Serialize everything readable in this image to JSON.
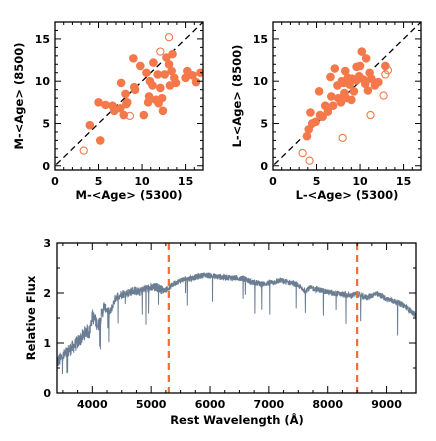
{
  "chart_data": [
    {
      "type": "scatter",
      "xlabel": "M-<Age> (5300)",
      "ylabel": "M-<Age> (8500)",
      "xlim": [
        0,
        17
      ],
      "ylim": [
        -0.5,
        17
      ],
      "xticks": [
        "0",
        "5",
        "10",
        "15"
      ],
      "yticks": [
        "0",
        "5",
        "10",
        "15"
      ],
      "reference_line": "one-to-one dashed",
      "filled": [
        [
          4,
          4.8
        ],
        [
          5.2,
          3
        ],
        [
          5,
          7.5
        ],
        [
          5.8,
          7.2
        ],
        [
          6.8,
          6.5
        ],
        [
          6.6,
          7.1
        ],
        [
          7.6,
          9.8
        ],
        [
          7.5,
          6.8
        ],
        [
          7.9,
          6
        ],
        [
          8.1,
          8.5
        ],
        [
          8.3,
          7.5
        ],
        [
          9,
          12.7
        ],
        [
          9.2,
          9
        ],
        [
          9.1,
          9.3
        ],
        [
          9.8,
          11.8
        ],
        [
          10.5,
          11
        ],
        [
          10.2,
          6
        ],
        [
          10.7,
          7.5
        ],
        [
          10.8,
          8.2
        ],
        [
          10.9,
          10
        ],
        [
          11.3,
          12.2
        ],
        [
          11.2,
          9.5
        ],
        [
          11.6,
          7.8
        ],
        [
          11.8,
          10.8
        ],
        [
          12.1,
          9.2
        ],
        [
          12.3,
          8
        ],
        [
          12.4,
          6.5
        ],
        [
          12.8,
          12.8
        ],
        [
          12.6,
          10.8
        ],
        [
          13.1,
          12
        ],
        [
          13.2,
          9.5
        ],
        [
          13.4,
          11.2
        ],
        [
          13.7,
          10.4
        ],
        [
          13.9,
          9.8
        ],
        [
          15,
          10.4
        ],
        [
          15.2,
          11.2
        ],
        [
          15.8,
          10.7
        ],
        [
          16.2,
          9.9
        ],
        [
          16.7,
          11
        ],
        [
          8.2,
          7.3
        ],
        [
          11.9,
          7.4
        ],
        [
          13.5,
          13.2
        ]
      ],
      "open": [
        [
          3.3,
          1.8
        ],
        [
          12.1,
          13.5
        ],
        [
          13.1,
          15.2
        ],
        [
          8.6,
          5.9
        ]
      ]
    },
    {
      "type": "scatter",
      "xlabel": "L-<Age> (5300)",
      "ylabel": "L-<Age> (8500)",
      "xlim": [
        0,
        17
      ],
      "ylim": [
        -0.5,
        17
      ],
      "xticks": [
        "0",
        "5",
        "10",
        "15"
      ],
      "yticks": [
        "0",
        "5",
        "10",
        "15"
      ],
      "reference_line": "one-to-one dashed",
      "filled": [
        [
          3.9,
          3.5
        ],
        [
          4.1,
          4.3
        ],
        [
          4.3,
          6.3
        ],
        [
          4.5,
          5
        ],
        [
          4.9,
          5.2
        ],
        [
          5.3,
          8.8
        ],
        [
          5.4,
          6
        ],
        [
          5.7,
          5.8
        ],
        [
          6,
          7.1
        ],
        [
          6.3,
          6.4
        ],
        [
          6.6,
          10.5
        ],
        [
          6.7,
          8.2
        ],
        [
          6.9,
          7.1
        ],
        [
          7.1,
          11.5
        ],
        [
          7.4,
          9.5
        ],
        [
          7.5,
          8
        ],
        [
          7.8,
          7.5
        ],
        [
          7.9,
          10
        ],
        [
          8.1,
          9.8
        ],
        [
          8.2,
          8.6
        ],
        [
          8.3,
          11.2
        ],
        [
          8.6,
          10.4
        ],
        [
          8.8,
          9.6
        ],
        [
          9,
          7.8
        ],
        [
          9.1,
          10.3
        ],
        [
          9.3,
          8.8
        ],
        [
          9.6,
          10.1
        ],
        [
          9.9,
          10.6
        ],
        [
          10,
          11.8
        ],
        [
          10.2,
          13.5
        ],
        [
          10.4,
          10.2
        ],
        [
          10.6,
          9.7
        ],
        [
          10.7,
          12.7
        ],
        [
          10.9,
          8.9
        ],
        [
          11.1,
          11
        ],
        [
          11.3,
          10.3
        ],
        [
          11.7,
          9.5
        ],
        [
          12.1,
          9.9
        ],
        [
          12.9,
          11.8
        ],
        [
          9.6,
          11.7
        ],
        [
          8.4,
          8
        ]
      ],
      "open": [
        [
          3.4,
          1.5
        ],
        [
          4.2,
          0.6
        ],
        [
          8,
          3.3
        ],
        [
          11.2,
          6
        ],
        [
          12.9,
          10.8
        ],
        [
          12.7,
          8.3
        ],
        [
          13.2,
          11.3
        ]
      ]
    },
    {
      "type": "line",
      "xlabel": "Rest Wavelength (Å)",
      "ylabel": "Relative Flux",
      "xlim": [
        3400,
        9500
      ],
      "ylim": [
        0,
        3
      ],
      "xticks": [
        "4000",
        "5000",
        "6000",
        "7000",
        "8000",
        "9000"
      ],
      "yticks": [
        "0",
        "1",
        "2",
        "3"
      ],
      "markers": [
        5300,
        8500
      ],
      "spectrum": [
        [
          3400,
          0.62
        ],
        [
          3500,
          0.72
        ],
        [
          3600,
          0.85
        ],
        [
          3700,
          0.95
        ],
        [
          3800,
          1.08
        ],
        [
          3900,
          1.25
        ],
        [
          3950,
          1.2
        ],
        [
          4000,
          1.55
        ],
        [
          4100,
          1.35
        ],
        [
          4200,
          1.72
        ],
        [
          4300,
          1.6
        ],
        [
          4400,
          1.92
        ],
        [
          4500,
          1.98
        ],
        [
          4600,
          2.0
        ],
        [
          4700,
          2.05
        ],
        [
          4800,
          2.02
        ],
        [
          4900,
          2.08
        ],
        [
          5000,
          2.1
        ],
        [
          5100,
          2.12
        ],
        [
          5200,
          2.05
        ],
        [
          5300,
          2.1
        ],
        [
          5400,
          2.2
        ],
        [
          5500,
          2.25
        ],
        [
          5600,
          2.28
        ],
        [
          5700,
          2.3
        ],
        [
          5800,
          2.33
        ],
        [
          5900,
          2.36
        ],
        [
          6000,
          2.35
        ],
        [
          6100,
          2.33
        ],
        [
          6200,
          2.32
        ],
        [
          6300,
          2.31
        ],
        [
          6400,
          2.3
        ],
        [
          6500,
          2.3
        ],
        [
          6600,
          2.28
        ],
        [
          6700,
          2.22
        ],
        [
          6800,
          2.2
        ],
        [
          6900,
          2.18
        ],
        [
          7000,
          2.2
        ],
        [
          7100,
          2.22
        ],
        [
          7200,
          2.25
        ],
        [
          7300,
          2.22
        ],
        [
          7400,
          2.2
        ],
        [
          7500,
          2.15
        ],
        [
          7600,
          2.05
        ],
        [
          7700,
          2.1
        ],
        [
          7800,
          2.08
        ],
        [
          7900,
          2.05
        ],
        [
          8000,
          2.02
        ],
        [
          8100,
          2.0
        ],
        [
          8200,
          1.98
        ],
        [
          8300,
          1.96
        ],
        [
          8400,
          1.95
        ],
        [
          8500,
          1.98
        ],
        [
          8600,
          1.92
        ],
        [
          8700,
          1.92
        ],
        [
          8800,
          1.98
        ],
        [
          8900,
          1.95
        ],
        [
          9000,
          1.88
        ],
        [
          9100,
          1.85
        ],
        [
          9200,
          1.8
        ],
        [
          9300,
          1.75
        ],
        [
          9400,
          1.65
        ],
        [
          9500,
          1.55
        ]
      ]
    }
  ]
}
